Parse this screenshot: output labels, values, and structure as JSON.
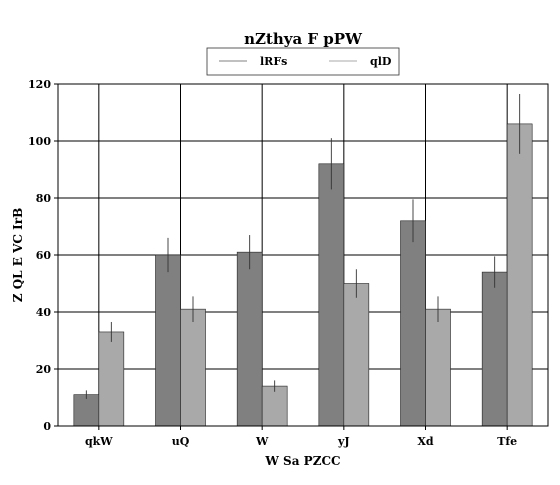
{
  "chart_data": {
    "type": "bar",
    "title": "nZthya F pPW",
    "xlabel": "W Sa PZCC",
    "ylabel": "Z QL E VC IrB",
    "categories": [
      "qkW",
      "uQ",
      "W",
      "yJ",
      "Xd",
      "Tfe"
    ],
    "ylim": [
      0,
      120
    ],
    "yticks": [
      0,
      20,
      40,
      60,
      80,
      100,
      120
    ],
    "grid": true,
    "legend_position": "top-center",
    "series": [
      {
        "name": "lRFs",
        "color": "#808080",
        "values": [
          11,
          60,
          61,
          92,
          72,
          54
        ],
        "errors": [
          1.5,
          6,
          6,
          9,
          7.5,
          5.5
        ]
      },
      {
        "name": "qlD",
        "color": "#a9a9a9",
        "values": [
          33,
          41,
          14,
          50,
          41,
          106
        ],
        "errors": [
          3.5,
          4.5,
          2,
          5,
          4.5,
          10.5
        ]
      }
    ]
  }
}
